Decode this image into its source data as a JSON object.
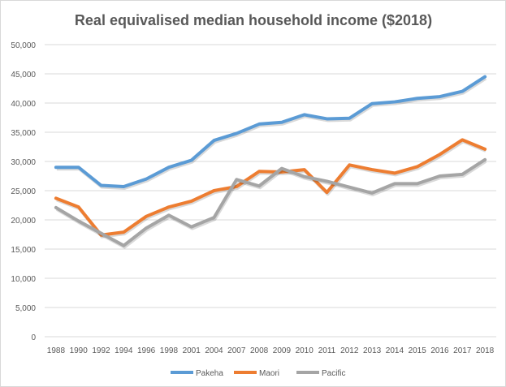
{
  "chart_data": {
    "type": "line",
    "title": "Real equivalised median household income ($2018)",
    "xlabel": "",
    "ylabel": "",
    "ylim": [
      0,
      50000
    ],
    "yticks": [
      0,
      5000,
      10000,
      15000,
      20000,
      25000,
      30000,
      35000,
      40000,
      45000,
      50000
    ],
    "ytick_labels": [
      "0",
      "5,000",
      "10,000",
      "15,000",
      "20,000",
      "25,000",
      "30,000",
      "35,000",
      "40,000",
      "45,000",
      "50,000"
    ],
    "grid": true,
    "legend_position": "bottom",
    "categories": [
      "1988",
      "1990",
      "1992",
      "1994",
      "1996",
      "1998",
      "2001",
      "2004",
      "2007",
      "2008",
      "2009",
      "2010",
      "2011",
      "2012",
      "2013",
      "2014",
      "2015",
      "2016",
      "2017",
      "2018"
    ],
    "series": [
      {
        "name": "Pakeha",
        "color": "#5b9bd5",
        "values": [
          29000,
          29000,
          25900,
          25700,
          27000,
          29000,
          30200,
          33600,
          34800,
          36400,
          36700,
          38000,
          37300,
          37400,
          39900,
          40200,
          40800,
          41100,
          42000,
          44500
        ]
      },
      {
        "name": "Maori",
        "color": "#ed7d31",
        "values": [
          23700,
          22200,
          17400,
          17900,
          20600,
          22200,
          23200,
          25000,
          25700,
          28300,
          28200,
          28600,
          24700,
          29400,
          28600,
          28000,
          29100,
          31200,
          33700,
          32100
        ]
      },
      {
        "name": "Pacific",
        "color": "#a5a5a5",
        "values": [
          22100,
          19800,
          17700,
          15600,
          18600,
          20800,
          18800,
          20400,
          26900,
          25800,
          28800,
          27400,
          26600,
          25600,
          24600,
          26200,
          26200,
          27500,
          27800,
          30300
        ]
      }
    ]
  }
}
